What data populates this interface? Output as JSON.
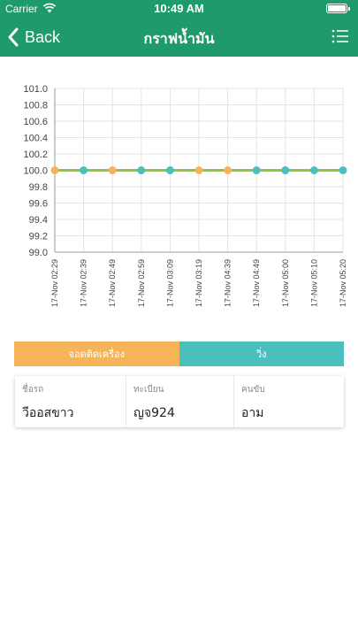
{
  "status_bar": {
    "carrier": "Carrier",
    "time": "10:49 AM"
  },
  "nav": {
    "back_label": "Back",
    "title": "กราฟน้ำมัน",
    "menu_icon": "list-menu-icon"
  },
  "chart_data": {
    "type": "line",
    "title": "",
    "xlabel": "",
    "ylabel": "",
    "ylim": [
      99.0,
      101.0
    ],
    "yticks": [
      "99.0",
      "99.2",
      "99.4",
      "99.6",
      "99.8",
      "100.0",
      "100.2",
      "100.4",
      "100.6",
      "100.8",
      "101.0"
    ],
    "categories": [
      "17-Nov 02:29",
      "17-Nov 02:39",
      "17-Nov 02:49",
      "17-Nov 02:59",
      "17-Nov 03:09",
      "17-Nov 03:19",
      "17-Nov 04:39",
      "17-Nov 04:49",
      "17-Nov 05:00",
      "17-Nov 05:10",
      "17-Nov 05:20"
    ],
    "series": [
      {
        "values": [
          100,
          100,
          100,
          100,
          100,
          100,
          100,
          100,
          100,
          100,
          100
        ]
      }
    ],
    "point_colors": [
      "#f5b35a",
      "#4bbfbd",
      "#f5b35a",
      "#4bbfbd",
      "#4bbfbd",
      "#f5b35a",
      "#f5b35a",
      "#4bbfbd",
      "#4bbfbd",
      "#4bbfbd",
      "#4bbfbd"
    ],
    "line_color": "#8cc63f",
    "grid": true
  },
  "legend_bar": {
    "engine_off_label": "จอดติดเครื่อง",
    "engine_off_color": "#f5b35a",
    "running_label": "วิ่ง",
    "running_color": "#4bbfbd"
  },
  "info": {
    "car_name_label": "ชื่อรถ",
    "car_name_value": "วีออสขาว",
    "plate_label": "ทะเบียน",
    "plate_value": "ญจ924",
    "driver_label": "คนขับ",
    "driver_value": "อาม"
  },
  "colors": {
    "brand_green": "#1f9a6b"
  }
}
